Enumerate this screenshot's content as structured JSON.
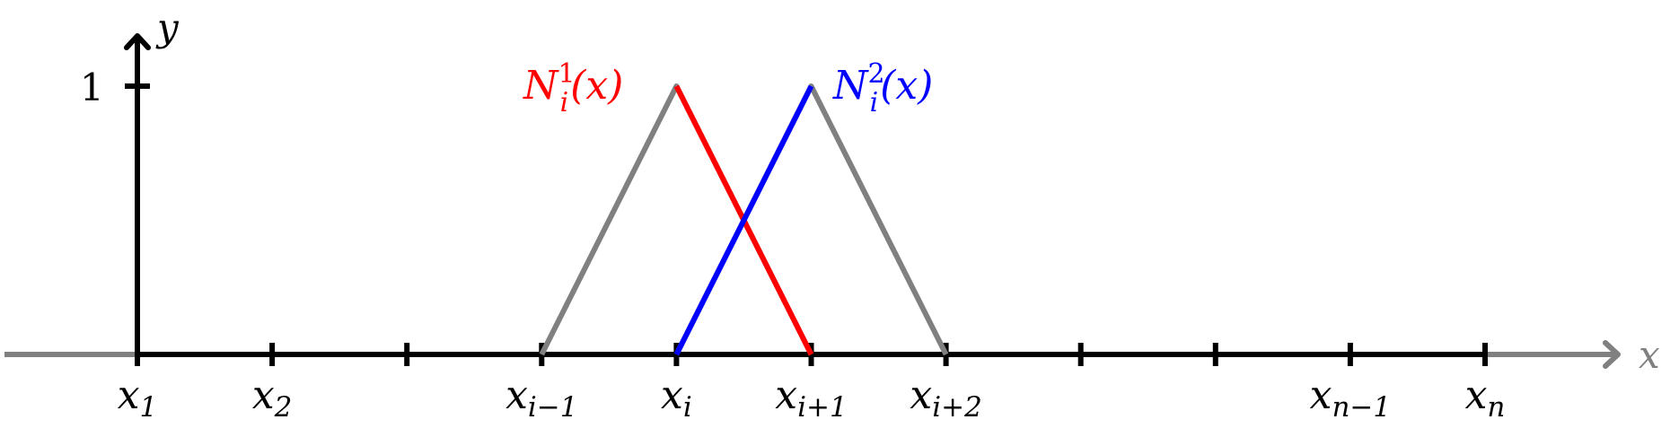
{
  "axes": {
    "x_label": "x",
    "y_label": "y",
    "y_tick_label": "1",
    "axis_color": "#000000",
    "x_extension_color": "#808080"
  },
  "ticks": [
    {
      "index": 1,
      "label": "x",
      "sub": "1"
    },
    {
      "index": 2,
      "label": "x",
      "sub": "2"
    },
    {
      "index": 3,
      "label": "",
      "sub": ""
    },
    {
      "index": 4,
      "label": "x",
      "sub": "i−1"
    },
    {
      "index": 5,
      "label": "x",
      "sub": "i"
    },
    {
      "index": 6,
      "label": "x",
      "sub": "i+1"
    },
    {
      "index": 7,
      "label": "x",
      "sub": "i+2"
    },
    {
      "index": 8,
      "label": "",
      "sub": ""
    },
    {
      "index": 9,
      "label": "",
      "sub": ""
    },
    {
      "index": 10,
      "label": "x",
      "sub": "n−1"
    },
    {
      "index": 11,
      "label": "x",
      "sub": "n"
    }
  ],
  "functions": [
    {
      "name": "N1",
      "label_main": "N",
      "label_sup": "1",
      "label_sub": "i",
      "label_arg": "(x)",
      "color": "#ff0000",
      "support_color": "#808080",
      "support": [
        4,
        5,
        6
      ],
      "peak_index": 5
    },
    {
      "name": "N2",
      "label_main": "N",
      "label_sup": "2",
      "label_sub": "i",
      "label_arg": "(x)",
      "color": "#0000ff",
      "support_color": "#808080",
      "support": [
        5,
        6,
        7
      ],
      "peak_index": 6
    }
  ]
}
